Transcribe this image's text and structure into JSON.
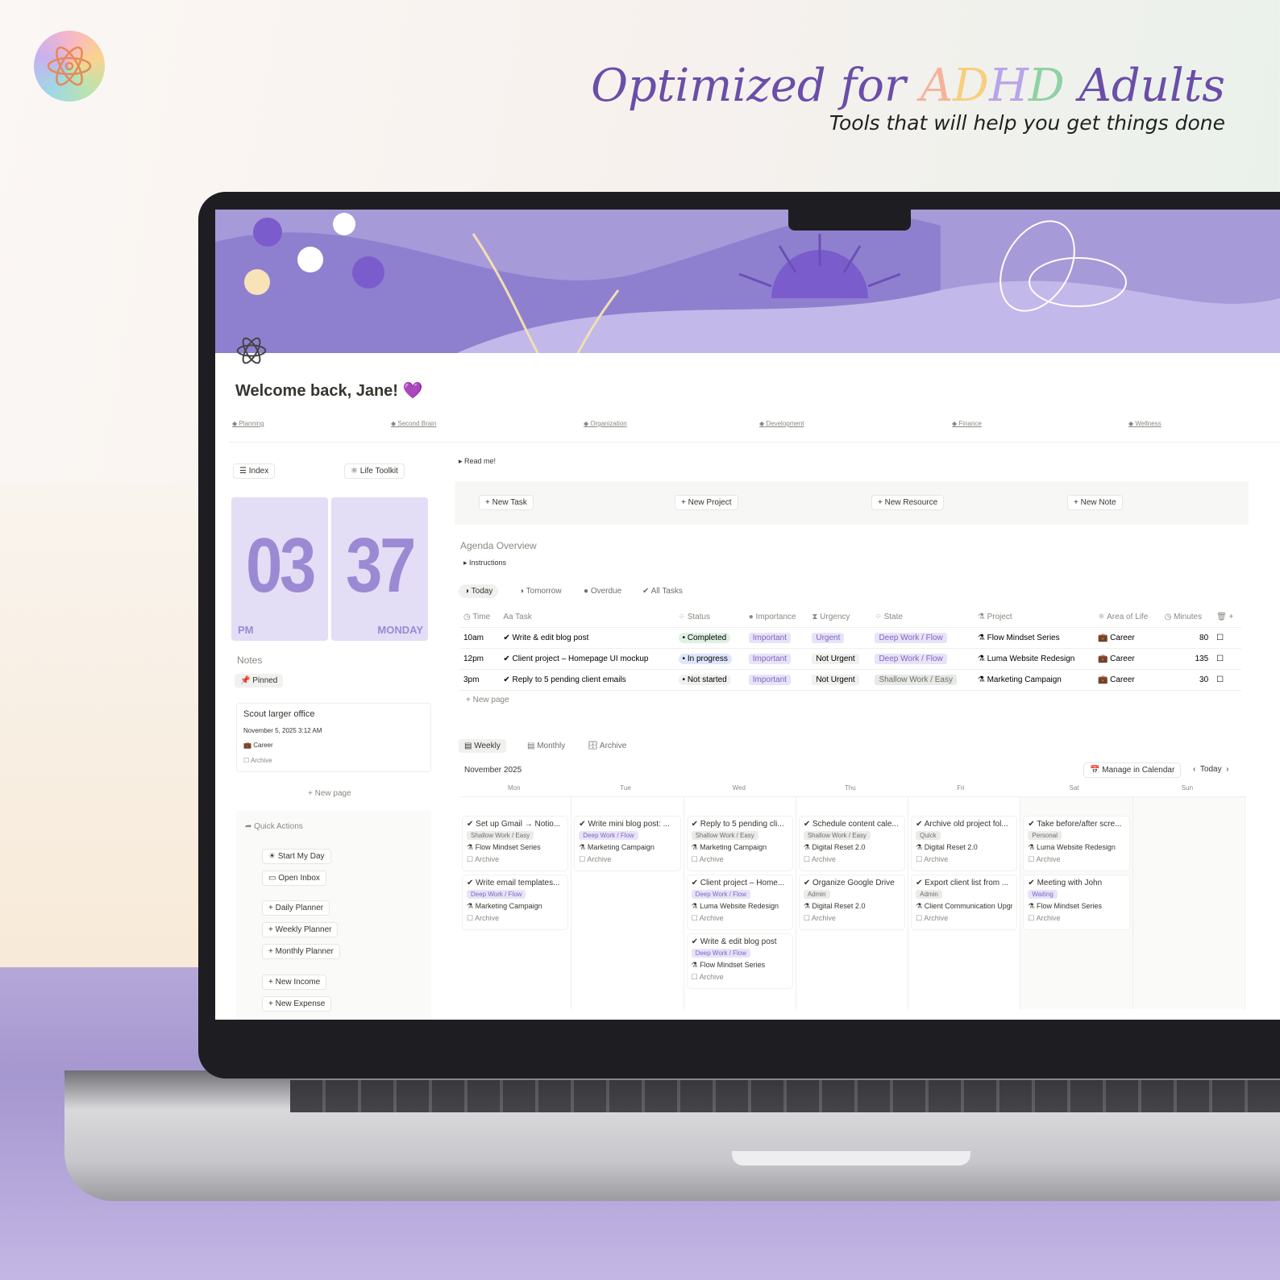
{
  "hero": {
    "title_pre": "Optimized for ",
    "title_letters": [
      "A",
      "D",
      "H",
      "D"
    ],
    "title_letter_colors": [
      "#f6b39a",
      "#f7cf7f",
      "#b9a4ea",
      "#8fd1a3"
    ],
    "title_post": " Adults",
    "subtitle": "Tools that will help you get things done"
  },
  "page": {
    "welcome": "Welcome back, Jane!",
    "heart": "💜",
    "nav": [
      "Planning",
      "Second Brain",
      "Organization",
      "Development",
      "Finance",
      "Wellness"
    ]
  },
  "sidebar": {
    "index": "Index",
    "life_toolkit": "Life Toolkit",
    "clock": {
      "hour": "03",
      "minute": "37",
      "ampm": "PM",
      "day": "MONDAY"
    },
    "notes_title": "Notes",
    "pinned": "Pinned",
    "note": {
      "title": "Scout larger office",
      "date": "November 5, 2025 3:12 AM",
      "area": "Career",
      "archive": "Archive"
    },
    "new_page": "New page",
    "quick_actions": "Quick Actions",
    "actions": [
      "Start My Day",
      "Open Inbox",
      "Daily Planner",
      "Weekly Planner",
      "Monthly Planner",
      "New Income",
      "New Expense"
    ]
  },
  "main": {
    "read_me": "Read me!",
    "quick_buttons": [
      "New Task",
      "New Project",
      "New Resource",
      "New Note"
    ],
    "agenda_title": "Agenda Overview",
    "instructions": "Instructions",
    "tabs": [
      "Today",
      "Tomorrow",
      "Overdue",
      "All Tasks"
    ],
    "columns": [
      "Time",
      "Task",
      "Status",
      "Importance",
      "Urgency",
      "State",
      "Project",
      "Area of Life",
      "Minutes"
    ],
    "rows": [
      {
        "time": "10am",
        "task": "Write & edit blog post",
        "status": "Completed",
        "importance": "Important",
        "urgency": "Urgent",
        "state": "Deep Work / Flow",
        "project": "Flow Mindset Series",
        "area": "Career",
        "minutes": "80"
      },
      {
        "time": "12pm",
        "task": "Client project – Homepage UI mockup",
        "status": "In progress",
        "importance": "Important",
        "urgency": "Not Urgent",
        "state": "Deep Work / Flow",
        "project": "Luma Website Redesign",
        "area": "Career",
        "minutes": "135"
      },
      {
        "time": "3pm",
        "task": "Reply to 5 pending client emails",
        "status": "Not started",
        "importance": "Important",
        "urgency": "Not Urgent",
        "state": "Shallow Work / Easy",
        "project": "Marketing Campaign",
        "area": "Career",
        "minutes": "30"
      }
    ],
    "new_page": "New page",
    "cal_tabs": [
      "Weekly",
      "Monthly",
      "Archive"
    ],
    "month": "November 2025",
    "manage": "Manage in Calendar",
    "today": "Today",
    "days": [
      "Mon",
      "Tue",
      "Wed",
      "Thu",
      "Fri",
      "Sat",
      "Sun"
    ],
    "calendar": [
      [
        {
          "t": "Set up Gmail → Notio...",
          "s": "Shallow Work / Easy",
          "p": "Flow Mindset Series"
        },
        {
          "t": "Write email templates...",
          "s": "Deep Work / Flow",
          "p": "Marketing Campaign"
        }
      ],
      [
        {
          "t": "Write mini blog post: ...",
          "s": "Deep Work / Flow",
          "p": "Marketing Campaign"
        }
      ],
      [
        {
          "t": "Reply to 5 pending cli...",
          "s": "Shallow Work / Easy",
          "p": "Marketing Campaign"
        },
        {
          "t": "Client project – Home...",
          "s": "Deep Work / Flow",
          "p": "Luma Website Redesign"
        },
        {
          "t": "Write & edit blog post",
          "s": "Deep Work / Flow",
          "p": "Flow Mindset Series"
        }
      ],
      [
        {
          "t": "Schedule content cale...",
          "s": "Shallow Work / Easy",
          "p": "Digital Reset 2.0"
        },
        {
          "t": "Organize Google Drive",
          "s": "Admin",
          "p": "Digital Reset 2.0"
        }
      ],
      [
        {
          "t": "Archive old project fol...",
          "s": "Quick",
          "p": "Digital Reset 2.0"
        },
        {
          "t": "Export client list from ...",
          "s": "Admin",
          "p": "Client Communication Upgra"
        }
      ],
      [
        {
          "t": "Take before/after scre...",
          "s": "Personal",
          "p": "Luma Website Redesign"
        },
        {
          "t": "Meeting with John",
          "s": "Waiting",
          "p": "Flow Mindset Series"
        }
      ],
      []
    ],
    "archive": "Archive"
  },
  "colors": {
    "accent": "#9b8ad3",
    "banner": "#a79ad8",
    "completed": "#dff1e4",
    "in_progress": "#dfe6fb"
  }
}
